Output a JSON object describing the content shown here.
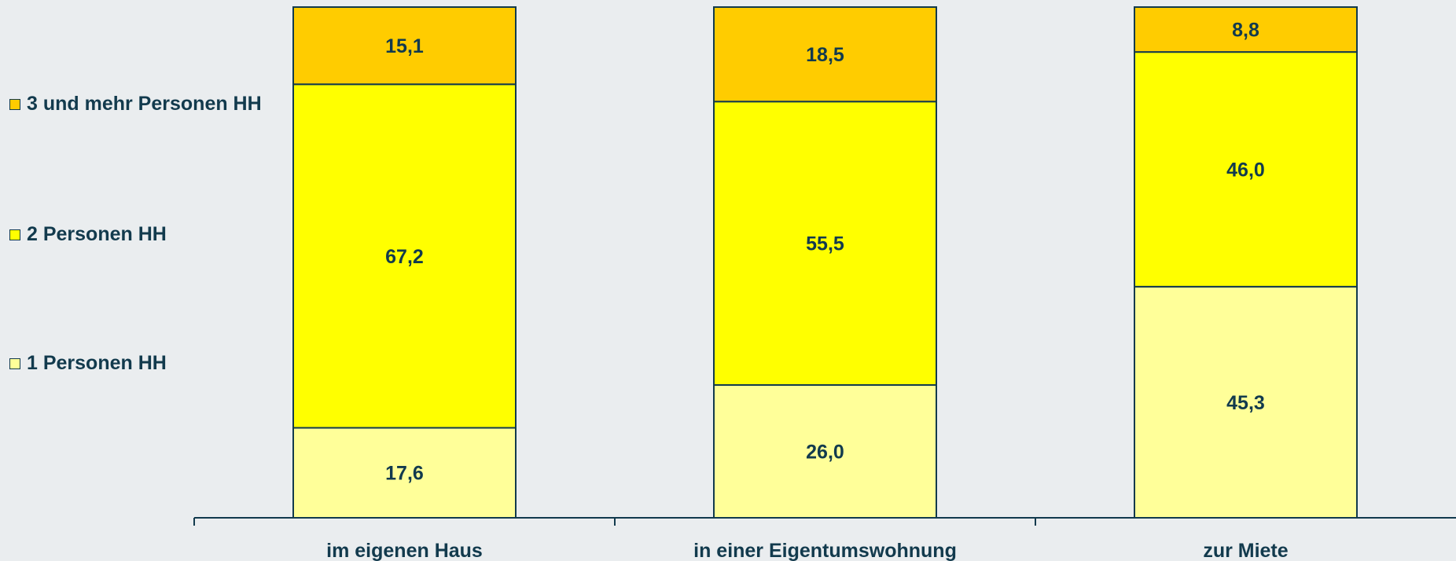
{
  "chart_data": {
    "type": "bar",
    "stacked": true,
    "normalized": true,
    "categories": [
      "im eigenen Haus",
      "in einer Eigentumswohnung",
      "zur Miete"
    ],
    "series": [
      {
        "name": "1 Personen HH",
        "values": [
          17.6,
          26.0,
          45.3
        ],
        "labels": [
          "17,6",
          "26,0",
          "45,3"
        ],
        "color": "#ffff99"
      },
      {
        "name": "2 Personen HH",
        "values": [
          67.2,
          55.5,
          46.0
        ],
        "labels": [
          "67,2",
          "55,5",
          "46,0"
        ],
        "color": "#ffff00"
      },
      {
        "name": "3 und mehr Personen HH",
        "values": [
          15.1,
          18.5,
          8.8
        ],
        "labels": [
          "15,1",
          "18,5",
          "8,8"
        ],
        "color": "#ffcc00"
      }
    ],
    "legend_position": "left",
    "grid": false
  },
  "colors": {
    "background": "#eaedef",
    "text": "#123a4d",
    "outline": "#123a4d"
  }
}
